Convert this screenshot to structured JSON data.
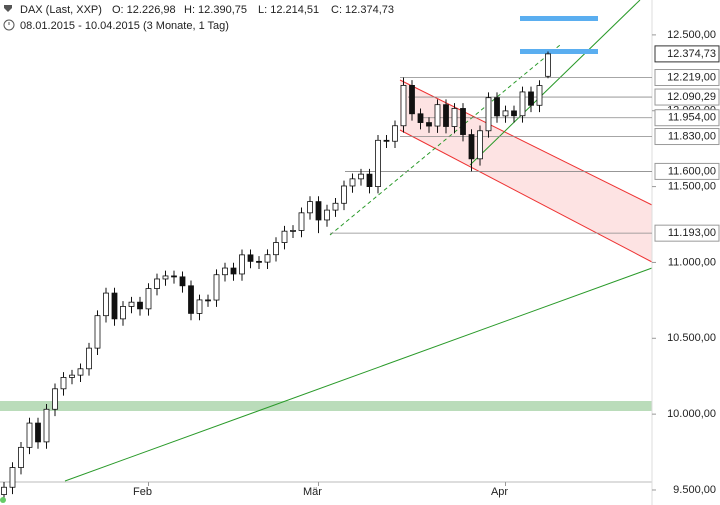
{
  "chart_data": {
    "type": "candlestick",
    "title": "DAX (Last, XXP)",
    "header": {
      "open": "O: 12.226,98",
      "high": "H: 12.390,75",
      "low": "L: 12.214,51",
      "close": "C: 12.374,73",
      "period": "08.01.2015 - 10.04.2015 (3 Monate, 1 Tag)"
    },
    "categories": [
      null,
      null,
      null,
      null,
      null,
      null,
      null,
      null,
      null,
      null,
      null,
      null,
      null,
      null,
      null,
      null,
      null,
      "Feb",
      null,
      null,
      null,
      null,
      null,
      null,
      null,
      null,
      null,
      null,
      null,
      null,
      null,
      null,
      null,
      null,
      null,
      null,
      null,
      "Mär",
      null,
      null,
      null,
      null,
      null,
      null,
      null,
      null,
      null,
      null,
      null,
      null,
      null,
      null,
      null,
      null,
      null,
      null,
      null,
      null,
      null,
      "Apr",
      null,
      null,
      null,
      null,
      null
    ],
    "open": [
      9470,
      9518,
      9648,
      9781,
      9941,
      9817,
      10032,
      10167,
      10242,
      10257,
      10299,
      10435,
      10649,
      10798,
      10628,
      10710,
      10738,
      10694,
      10828,
      10891,
      10911,
      10905,
      10846,
      10664,
      10753,
      10752,
      10919,
      10963,
      10924,
      11050,
      11007,
      11002,
      11051,
      11131,
      11206,
      11211,
      11327,
      11401,
      11280,
      11345,
      11390,
      11504,
      11551,
      11582,
      11500,
      11805,
      11799,
      11901,
      12167,
      11980,
      11922,
      11899,
      12040,
      11896,
      12015,
      11843,
      11683,
      11868,
      12086,
      11966,
      11999,
      11967,
      12124,
      12036,
      12226.98
    ],
    "high": [
      9553,
      9683,
      9816,
      9976,
      9976,
      10067,
      10202,
      10277,
      10292,
      10334,
      10470,
      10684,
      10833,
      10833,
      10745,
      10773,
      10773,
      10863,
      10926,
      10946,
      10946,
      10940,
      10881,
      10788,
      10788,
      10954,
      10998,
      10998,
      11085,
      11085,
      11042,
      11086,
      11166,
      11241,
      11246,
      11362,
      11436,
      11436,
      11380,
      11425,
      11539,
      11586,
      11617,
      11617,
      11840,
      11840,
      11936,
      12219,
      12202,
      12015,
      11957,
      12075,
      12075,
      12050,
      12050,
      11878,
      11903,
      12121,
      12121,
      12034,
      12034,
      12159,
      12159,
      12201,
      12390.75
    ],
    "low": [
      9425,
      9473,
      9603,
      9736,
      9772,
      9772,
      9987,
      10122,
      10197,
      10212,
      10254,
      10390,
      10604,
      10583,
      10583,
      10665,
      10649,
      10649,
      10783,
      10846,
      10860,
      10801,
      10619,
      10619,
      10707,
      10707,
      10874,
      10879,
      10879,
      10962,
      10957,
      10957,
      11006,
      11086,
      11161,
      11166,
      11282,
      11193,
      11235,
      11300,
      11345,
      11459,
      11506,
      11455,
      11455,
      11754,
      11754,
      11856,
      11935,
      11877,
      11854,
      11854,
      11851,
      11851,
      11798,
      11600,
      11638,
      11823,
      11921,
      11921,
      11922,
      11922,
      11991,
      11991,
      12214.51
    ],
    "close": [
      9518,
      9648,
      9781,
      9941,
      9817,
      10032,
      10167,
      10242,
      10257,
      10299,
      10435,
      10649,
      10798,
      10628,
      10710,
      10738,
      10694,
      10828,
      10891,
      10911,
      10905,
      10846,
      10664,
      10753,
      10752,
      10919,
      10963,
      10924,
      11050,
      11007,
      11002,
      11051,
      11131,
      11206,
      11211,
      11327,
      11401,
      11280,
      11345,
      11390,
      11504,
      11551,
      11582,
      11500,
      11805,
      11799,
      11901,
      12167,
      11980,
      11922,
      11899,
      12040,
      11896,
      12015,
      11843,
      11683,
      11868,
      12086,
      11966,
      11999,
      11967,
      12124,
      12036,
      12166,
      12374.73
    ],
    "ylim": [
      9401,
      12730
    ],
    "yticks": [
      {
        "value": 9500,
        "label": "9.500,00"
      },
      {
        "value": 10000,
        "label": "10.000,00"
      },
      {
        "value": 10500,
        "label": "10.500,00"
      },
      {
        "value": 11000,
        "label": "11.000,00"
      },
      {
        "value": 11500,
        "label": "11.500,00"
      },
      {
        "value": 12000,
        "label": "12.000,00"
      },
      {
        "value": 12500,
        "label": "12.500,00"
      }
    ],
    "levels": [
      {
        "value": 12219,
        "label": "12.219,00"
      },
      {
        "value": 12090.29,
        "label": "12.090,29"
      },
      {
        "value": 11954,
        "label": "11.954,00"
      },
      {
        "value": 11830,
        "label": "11.830,00"
      },
      {
        "value": 11600,
        "label": "11.600,00"
      },
      {
        "value": 11193,
        "label": "11.193,00"
      }
    ],
    "last_price": {
      "value": 12374.73,
      "label": "12.374,73"
    }
  }
}
